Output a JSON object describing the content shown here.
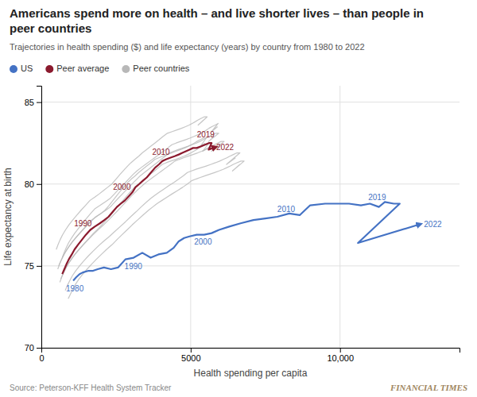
{
  "chart_data": {
    "type": "line",
    "title": "Americans spend more on health – and live shorter lives – than people in\npeer countries",
    "subtitle": "Trajectories in health spending ($) and life expectancy (years) by country from 1980 to 2022",
    "x_label": "Health spending per capita",
    "y_label": "Life expectancy at birth",
    "source": "Source: Peterson-KFF Health System Tracker",
    "watermark": "FINANCIAL TIMES",
    "xlim": [
      0,
      14000
    ],
    "ylim": [
      70,
      86
    ],
    "xticks": [
      0,
      5000,
      {
        "value": 10000,
        "label": "10,000"
      }
    ],
    "yticks": [
      70,
      75,
      80,
      85
    ],
    "grid": true,
    "legend": "upper left",
    "series": [
      {
        "name": "US",
        "color": "#4472c4",
        "x": [
          1067,
          1165,
          1280,
          1388,
          1580,
          1732,
          1888,
          2096,
          2332,
          2567,
          2814,
          3090,
          3380,
          3660,
          3920,
          4200,
          4430,
          4600,
          4780,
          4960,
          5200,
          5450,
          5700,
          5950,
          6290,
          6670,
          7100,
          7500,
          7900,
          8300,
          8650,
          9000,
          9500,
          9900,
          10300,
          10700,
          11000,
          11300,
          11500,
          11800,
          12000,
          10600,
          12600
        ],
        "values": [
          74.1,
          74.3,
          74.5,
          74.6,
          74.7,
          74.7,
          74.8,
          74.9,
          74.8,
          74.9,
          75.4,
          75.5,
          75.8,
          75.5,
          75.7,
          75.8,
          76.1,
          76.5,
          76.7,
          76.8,
          76.9,
          76.9,
          77.0,
          77.2,
          77.4,
          77.6,
          77.8,
          77.9,
          78.0,
          78.2,
          78.1,
          78.7,
          78.8,
          78.8,
          78.8,
          78.7,
          78.8,
          78.6,
          78.9,
          78.8,
          78.8,
          76.4,
          77.5
        ],
        "point_labels": [
          "1980",
          null,
          null,
          null,
          null,
          null,
          null,
          null,
          null,
          null,
          "1990",
          null,
          null,
          null,
          null,
          null,
          null,
          null,
          null,
          null,
          "2000",
          null,
          null,
          null,
          null,
          null,
          null,
          null,
          null,
          null,
          "2010",
          null,
          null,
          null,
          null,
          null,
          null,
          null,
          null,
          "2019",
          null,
          null,
          "2022"
        ]
      },
      {
        "name": "Peer average",
        "color": "#8b1a2e",
        "x": [
          700,
          770,
          840,
          920,
          1020,
          1110,
          1230,
          1360,
          1490,
          1640,
          1790,
          1960,
          2110,
          2250,
          2390,
          2530,
          2660,
          2800,
          2950,
          3050,
          3150,
          3280,
          3400,
          3530,
          3670,
          3810,
          3940,
          4050,
          4170,
          4310,
          4460,
          4600,
          4720,
          4840,
          4960,
          5080,
          5200,
          5350,
          5480,
          5610,
          5700,
          5600,
          5750
        ],
        "values": [
          74.5,
          74.8,
          75.1,
          75.4,
          75.7,
          76.0,
          76.3,
          76.6,
          76.9,
          77.2,
          77.4,
          77.6,
          77.8,
          78.0,
          78.3,
          78.6,
          78.8,
          79.0,
          79.3,
          79.5,
          79.8,
          80.0,
          80.2,
          80.4,
          80.7,
          81.0,
          81.2,
          81.4,
          81.5,
          81.6,
          81.7,
          81.8,
          81.9,
          82.0,
          82.1,
          82.2,
          82.2,
          82.3,
          82.4,
          82.5,
          82.5,
          82.1,
          82.2
        ],
        "point_labels": [
          null,
          null,
          null,
          null,
          null,
          null,
          null,
          null,
          null,
          null,
          "1990",
          null,
          null,
          null,
          null,
          null,
          null,
          null,
          null,
          null,
          "2000",
          null,
          null,
          null,
          null,
          null,
          null,
          null,
          null,
          null,
          "2010",
          null,
          null,
          null,
          null,
          null,
          null,
          null,
          null,
          "2019",
          null,
          null,
          "2022"
        ]
      },
      {
        "name": "Peer countries",
        "color": "#b8b8b8",
        "x": [
          700,
          760,
          830,
          910,
          1010,
          1120,
          1250,
          1380,
          1510,
          1650,
          1800,
          1970,
          2130,
          2290,
          2450,
          2600,
          2770,
          2920,
          3080,
          3200,
          3340,
          3490,
          3640,
          3790,
          3940,
          4090,
          4230,
          4370,
          4510,
          4660,
          4820,
          4970,
          5100,
          5230,
          5350,
          5450,
          5530,
          5610,
          5710,
          5820,
          5920,
          5700,
          5900
        ],
        "values": [
          75.5,
          75.8,
          76.1,
          76.4,
          76.7,
          77.0,
          77.3,
          77.6,
          77.9,
          78.2,
          78.5,
          78.7,
          78.9,
          79.1,
          79.4,
          79.7,
          80.0,
          80.3,
          80.6,
          80.8,
          81.0,
          81.2,
          81.4,
          81.6,
          81.8,
          82.0,
          82.2,
          82.4,
          82.5,
          82.6,
          82.7,
          82.8,
          82.9,
          83.0,
          83.1,
          83.2,
          83.3,
          83.4,
          83.5,
          83.6,
          83.7,
          83.2,
          83.5
        ]
      },
      {
        "name": "Peer countries",
        "color": "#b8b8b8",
        "x": [
          620,
          680,
          750,
          830,
          930,
          1040,
          1170,
          1310,
          1450,
          1600,
          1750,
          1920,
          2070,
          2220,
          2370,
          2500,
          2640,
          2780,
          2920,
          3020,
          3120,
          3250,
          3380,
          3510,
          3650,
          3790,
          3920,
          4050,
          4180,
          4330,
          4490,
          4640,
          4780,
          4900,
          5010,
          5100,
          5200,
          5280,
          5370,
          5470,
          5570,
          5400,
          5580
        ],
        "values": [
          74.0,
          74.3,
          74.6,
          74.9,
          75.2,
          75.5,
          75.8,
          76.1,
          76.4,
          76.7,
          77.0,
          77.3,
          77.6,
          77.9,
          78.2,
          78.5,
          78.8,
          79.1,
          79.4,
          79.6,
          79.8,
          80.0,
          80.2,
          80.4,
          80.6,
          80.8,
          81.0,
          81.2,
          81.3,
          81.4,
          81.5,
          81.6,
          81.7,
          81.8,
          81.9,
          82.0,
          82.1,
          82.2,
          82.3,
          82.4,
          82.4,
          82.0,
          82.2
        ]
      },
      {
        "name": "Peer countries",
        "color": "#b8b8b8",
        "x": [
          800,
          870,
          950,
          1040,
          1150,
          1280,
          1420,
          1570,
          1730,
          1900,
          2080,
          2280,
          2460,
          2640,
          2820,
          2990,
          3170,
          3340,
          3520,
          3650,
          3790,
          3950,
          4110,
          4270,
          4440,
          4600,
          4750,
          4890,
          5030,
          5180,
          5350,
          5520,
          5680,
          5830,
          5970,
          6090,
          6210,
          6310,
          6430,
          6550,
          6650,
          6200,
          6500
        ],
        "values": [
          73.5,
          73.8,
          74.1,
          74.4,
          74.7,
          75.0,
          75.3,
          75.6,
          75.9,
          76.2,
          76.5,
          76.8,
          77.1,
          77.4,
          77.7,
          78.0,
          78.3,
          78.6,
          78.9,
          79.1,
          79.3,
          79.5,
          79.7,
          79.9,
          80.1,
          80.3,
          80.5,
          80.7,
          80.8,
          80.9,
          81.0,
          81.1,
          81.2,
          81.3,
          81.4,
          81.5,
          81.6,
          81.7,
          81.8,
          81.9,
          81.9,
          81.2,
          81.6
        ]
      },
      {
        "name": "Peer countries",
        "color": "#b8b8b8",
        "x": [
          550,
          610,
          680,
          760,
          860,
          970,
          1100,
          1240,
          1380,
          1530,
          1680,
          1840,
          1990,
          2130,
          2270,
          2400,
          2530,
          2660,
          2800,
          2900,
          3010,
          3140,
          3260,
          3390,
          3530,
          3670,
          3800,
          3930,
          4060,
          4200,
          4360,
          4510,
          4660,
          4800,
          4920,
          5020,
          5120,
          5210,
          5310,
          5420,
          5520,
          5320,
          5480
        ],
        "values": [
          74.8,
          75.1,
          75.4,
          75.7,
          76.0,
          76.3,
          76.6,
          76.9,
          77.2,
          77.5,
          77.8,
          78.0,
          78.2,
          78.4,
          78.7,
          79.0,
          79.3,
          79.6,
          79.9,
          80.1,
          80.3,
          80.5,
          80.7,
          80.9,
          81.1,
          81.3,
          81.5,
          81.6,
          81.7,
          81.8,
          81.9,
          82.0,
          82.1,
          82.2,
          82.3,
          82.4,
          82.5,
          82.6,
          82.7,
          82.8,
          82.8,
          82.3,
          82.5
        ]
      },
      {
        "name": "Peer countries",
        "color": "#b8b8b8",
        "x": [
          900,
          980,
          1060,
          1150,
          1260,
          1390,
          1530,
          1680,
          1840,
          2010,
          2180,
          2370,
          2530,
          2700,
          2870,
          3040,
          3220,
          3400,
          3590,
          3730,
          3870,
          4040,
          4210,
          4380,
          4560,
          4730,
          4890,
          5030,
          5170,
          5320,
          5480,
          5640,
          5800,
          5950,
          6090,
          6210,
          6330,
          6430,
          6550,
          6680,
          6790,
          6400,
          6650
        ],
        "values": [
          73.0,
          73.3,
          73.6,
          73.9,
          74.2,
          74.5,
          74.8,
          75.1,
          75.4,
          75.7,
          76.0,
          76.3,
          76.6,
          76.9,
          77.2,
          77.5,
          77.8,
          78.1,
          78.4,
          78.6,
          78.8,
          79.0,
          79.2,
          79.4,
          79.6,
          79.8,
          80.0,
          80.2,
          80.3,
          80.4,
          80.5,
          80.6,
          80.7,
          80.8,
          80.9,
          81.0,
          81.1,
          81.2,
          81.3,
          81.4,
          81.4,
          80.8,
          81.2
        ]
      },
      {
        "name": "Peer countries",
        "color": "#b8b8b8",
        "x": [
          500,
          560,
          630,
          710,
          810,
          920,
          1050,
          1190,
          1330,
          1480,
          1630,
          1790,
          1940,
          2080,
          2220,
          2360,
          2500,
          2640,
          2790,
          2890,
          3000,
          3130,
          3260,
          3380,
          3520,
          3660,
          3800,
          3940,
          4070,
          4220,
          4380,
          4540,
          4690,
          4830,
          4950,
          5050,
          5150,
          5240,
          5340,
          5450,
          5550,
          5250,
          5420
        ],
        "values": [
          76.0,
          76.3,
          76.6,
          76.9,
          77.2,
          77.5,
          77.8,
          78.1,
          78.4,
          78.7,
          79.0,
          79.2,
          79.4,
          79.6,
          79.8,
          80.0,
          80.3,
          80.6,
          80.9,
          81.1,
          81.3,
          81.5,
          81.7,
          81.9,
          82.1,
          82.3,
          82.5,
          82.7,
          82.9,
          83.1,
          83.2,
          83.3,
          83.4,
          83.5,
          83.6,
          83.7,
          83.8,
          83.9,
          84.0,
          84.1,
          84.1,
          83.6,
          83.9
        ]
      },
      {
        "name": "Peer countries",
        "color": "#b8b8b8",
        "x": [
          650,
          720,
          800,
          890,
          1000,
          1120,
          1260,
          1410,
          1570,
          1730,
          1900,
          2080,
          2250,
          2410,
          2570,
          2720,
          2880,
          3030,
          3200,
          3320,
          3440,
          3580,
          3730,
          3880,
          4030,
          4180,
          4330,
          4470,
          4610,
          4760,
          4920,
          5080,
          5230,
          5370,
          5490,
          5590,
          5690,
          5790,
          5900,
          6020,
          6120,
          5700,
          5950
        ],
        "values": [
          74.2,
          74.5,
          74.8,
          75.1,
          75.4,
          75.7,
          76.0,
          76.3,
          76.6,
          76.9,
          77.2,
          77.5,
          77.8,
          78.1,
          78.4,
          78.7,
          79.0,
          79.3,
          79.6,
          79.8,
          80.0,
          80.2,
          80.4,
          80.6,
          80.8,
          81.0,
          81.2,
          81.4,
          81.5,
          81.6,
          81.7,
          81.8,
          81.9,
          82.0,
          82.1,
          82.2,
          82.3,
          82.4,
          82.5,
          82.6,
          82.6,
          82.0,
          82.3
        ]
      },
      {
        "name": "Peer countries",
        "color": "#b8b8b8",
        "x": [
          580,
          650,
          730,
          820,
          930,
          1050,
          1190,
          1340,
          1500,
          1660,
          1820,
          2000,
          2160,
          2310,
          2460,
          2610,
          2770,
          2930,
          3090,
          3200,
          3310,
          3450,
          3590,
          3730,
          3870,
          4010,
          4150,
          4290,
          4430,
          4580,
          4740,
          4900,
          5050,
          5190,
          5310,
          5410,
          5510,
          5610,
          5720,
          5840,
          5940,
          5600,
          5780
        ],
        "values": [
          75.0,
          75.3,
          75.6,
          75.9,
          76.2,
          76.5,
          76.8,
          77.1,
          77.4,
          77.7,
          78.0,
          78.2,
          78.4,
          78.6,
          78.9,
          79.2,
          79.5,
          79.8,
          80.1,
          80.3,
          80.5,
          80.7,
          80.9,
          81.1,
          81.3,
          81.5,
          81.7,
          81.9,
          82.0,
          82.1,
          82.2,
          82.3,
          82.4,
          82.5,
          82.6,
          82.7,
          82.8,
          82.9,
          83.0,
          83.1,
          83.1,
          82.6,
          82.9
        ]
      }
    ]
  }
}
